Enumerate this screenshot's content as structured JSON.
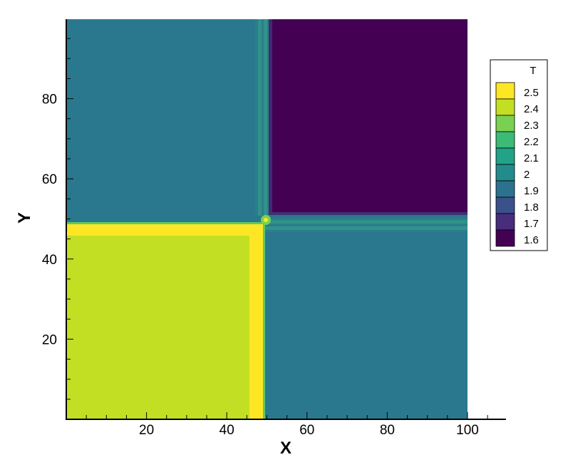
{
  "chart_data": {
    "type": "heatmap",
    "title": "",
    "xlabel": "X",
    "ylabel": "Y",
    "xlim": [
      0,
      100
    ],
    "ylim": [
      0,
      100
    ],
    "x_ticks": [
      20,
      40,
      60,
      80,
      100
    ],
    "y_ticks": [
      20,
      40,
      60,
      80
    ],
    "colorbar": {
      "title": "T",
      "levels": [
        2.5,
        2.4,
        2.3,
        2.2,
        2.1,
        2,
        1.9,
        1.8,
        1.7,
        1.6
      ],
      "colors": [
        "#fde725",
        "#c2df23",
        "#7ad151",
        "#3bbb75",
        "#20a386",
        "#228c8d",
        "#2c728e",
        "#3b518b",
        "#472d7b",
        "#440154"
      ],
      "placement": "right"
    },
    "regions": [
      {
        "name": "top-left quadrant",
        "x": [
          0,
          48
        ],
        "y": [
          49,
          100
        ],
        "value": 2.0
      },
      {
        "name": "top-right quadrant",
        "x": [
          51,
          100
        ],
        "y": [
          51,
          100
        ],
        "value": 1.6
      },
      {
        "name": "bottom-right quadrant",
        "x": [
          49,
          100
        ],
        "y": [
          0,
          48
        ],
        "value": 2.0
      },
      {
        "name": "bottom-left quadrant",
        "x": [
          0,
          46
        ],
        "y": [
          0,
          46
        ],
        "value": 2.4
      },
      {
        "name": "horizontal front",
        "x": [
          0,
          48
        ],
        "y": [
          46,
          48.5
        ],
        "value": 2.5
      },
      {
        "name": "vertical front",
        "x": [
          46,
          48.5
        ],
        "y": [
          0,
          48.5
        ],
        "value": 2.5
      }
    ]
  }
}
